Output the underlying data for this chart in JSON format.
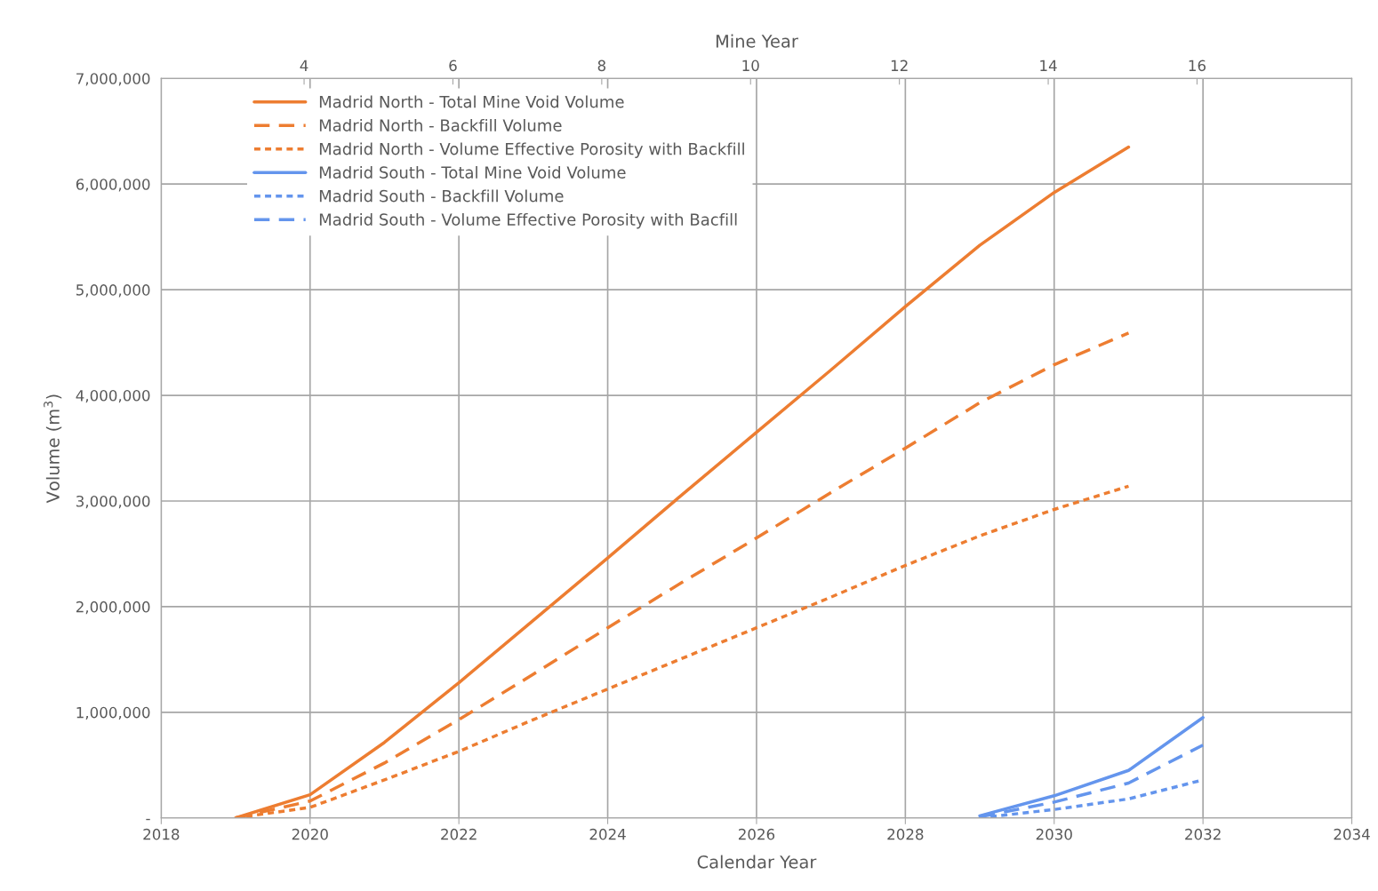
{
  "chart_data": {
    "type": "line",
    "xlabel": "Calendar Year",
    "ylabel": "Volume (m$^{3}$)",
    "x2label": "Mine Year",
    "xlim": [
      2018,
      2034
    ],
    "xticks": [
      2018,
      2020,
      2022,
      2024,
      2026,
      2028,
      2030,
      2032,
      2034
    ],
    "x2lim": [
      2.08,
      18.08
    ],
    "x2ticks": [
      4,
      6,
      8,
      10,
      12,
      14,
      16
    ],
    "ylim": [
      0,
      7000000
    ],
    "yticks": [
      {
        "value": 0,
        "label": "-"
      },
      {
        "value": 1000000,
        "label": "1,000,000"
      },
      {
        "value": 2000000,
        "label": "2,000,000"
      },
      {
        "value": 3000000,
        "label": "3,000,000"
      },
      {
        "value": 4000000,
        "label": "4,000,000"
      },
      {
        "value": 5000000,
        "label": "5,000,000"
      },
      {
        "value": 6000000,
        "label": "6,000,000"
      },
      {
        "value": 7000000,
        "label": "7,000,000"
      }
    ],
    "grid": true,
    "legend": "top left",
    "marker": "none",
    "series": [
      {
        "name": "Madrid North - Total Mine Void Volume",
        "color": "#ed7d31",
        "line_style": "solid",
        "x": [
          2019,
          2020,
          2021,
          2022,
          2023,
          2024,
          2025,
          2026,
          2027,
          2028,
          2029,
          2030,
          2031
        ],
        "values": [
          0,
          220000,
          715000,
          1280000,
          1870000,
          2460000,
          3060000,
          3650000,
          4240000,
          4840000,
          5420000,
          5920000,
          6350000
        ]
      },
      {
        "name": "Madrid North - Backfill Volume",
        "color": "#ed7d31",
        "line_style": "dashed",
        "x": [
          2019,
          2020,
          2021,
          2022,
          2023,
          2024,
          2025,
          2026,
          2027,
          2028,
          2029,
          2030,
          2031
        ],
        "values": [
          0,
          160000,
          520000,
          930000,
          1360000,
          1800000,
          2230000,
          2650000,
          3080000,
          3500000,
          3930000,
          4290000,
          4590000
        ]
      },
      {
        "name": "Madrid North - Volume Effective Porosity with Backfill",
        "color": "#ed7d31",
        "line_style": "dotted",
        "x": [
          2019,
          2020,
          2021,
          2022,
          2023,
          2024,
          2025,
          2026,
          2027,
          2028,
          2029,
          2030,
          2031
        ],
        "values": [
          0,
          100000,
          360000,
          630000,
          930000,
          1220000,
          1510000,
          1800000,
          2090000,
          2390000,
          2670000,
          2920000,
          3140000
        ]
      },
      {
        "name": "Madrid South - Total Mine Void Volume",
        "color": "#6495ed",
        "line_style": "solid",
        "x": [
          2029,
          2030,
          2031,
          2032
        ],
        "values": [
          20000,
          210000,
          450000,
          950000
        ]
      },
      {
        "name": "Madrid South - Backfill Volume",
        "color": "#6495ed",
        "line_style": "dotted",
        "x": [
          2029,
          2030,
          2031,
          2032
        ],
        "values": [
          0,
          80000,
          180000,
          360000
        ]
      },
      {
        "name": "Madrid South - Volume Effective Porosity with Bacfill",
        "color": "#6495ed",
        "line_style": "dashed",
        "x": [
          2029,
          2030,
          2031,
          2032
        ],
        "values": [
          10000,
          150000,
          330000,
          690000
        ]
      }
    ]
  }
}
